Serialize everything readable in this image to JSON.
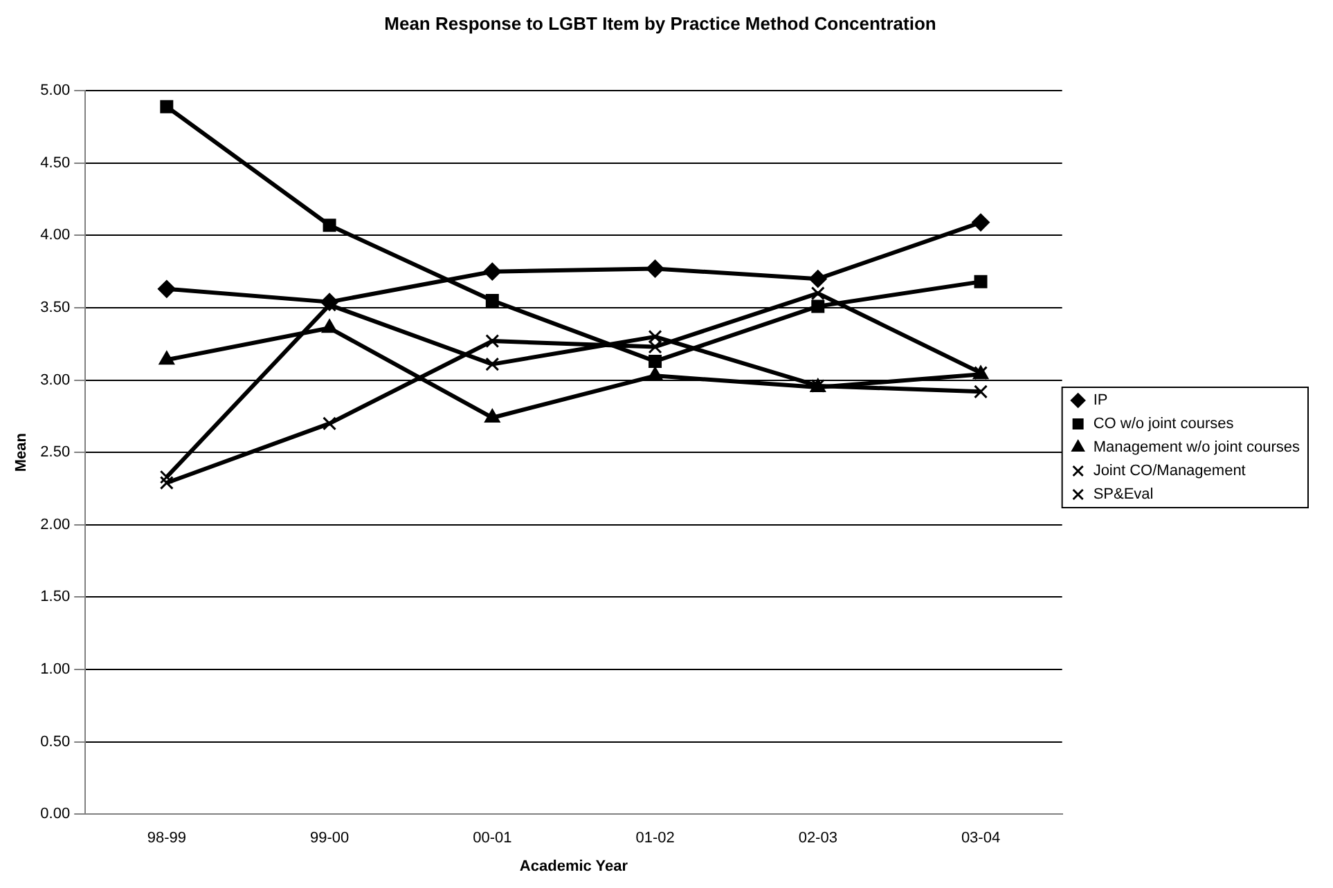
{
  "chart_data": {
    "type": "line",
    "title": "Mean Response to LGBT Item by Practice Method Concentration",
    "xlabel": "Academic Year",
    "ylabel": "Mean",
    "categories": [
      "98-99",
      "99-00",
      "00-01",
      "01-02",
      "02-03",
      "03-04"
    ],
    "series": [
      {
        "name": "IP",
        "color": "#000000",
        "marker": "diamond",
        "values": [
          3.63,
          3.54,
          3.75,
          3.77,
          3.7,
          4.09
        ]
      },
      {
        "name": "CO w/o joint courses",
        "color": "#000000",
        "marker": "square",
        "values": [
          4.89,
          4.07,
          3.55,
          3.13,
          3.51,
          3.68
        ]
      },
      {
        "name": "Management w/o joint courses",
        "color": "#000000",
        "marker": "triangle",
        "values": [
          3.14,
          3.36,
          2.74,
          3.03,
          2.95,
          3.04
        ]
      },
      {
        "name": "Joint CO/Management",
        "color": "#000000",
        "marker": "cross",
        "values": [
          2.33,
          3.52,
          3.11,
          3.3,
          2.96,
          2.92
        ]
      },
      {
        "name": "SP&Eval",
        "color": "#000000",
        "marker": "cross",
        "values": [
          2.29,
          2.7,
          3.27,
          3.23,
          3.6,
          3.05
        ]
      }
    ],
    "ylim": [
      0,
      5
    ],
    "yticks": [
      {
        "value": 0,
        "label": "0.00"
      },
      {
        "value": 0.5,
        "label": "0.50"
      },
      {
        "value": 1,
        "label": "1.00"
      },
      {
        "value": 1.5,
        "label": "1.50"
      },
      {
        "value": 2,
        "label": "2.00"
      },
      {
        "value": 2.5,
        "label": "2.50"
      },
      {
        "value": 3,
        "label": "3.00"
      },
      {
        "value": 3.5,
        "label": "3.50"
      },
      {
        "value": 4,
        "label": "4.00"
      },
      {
        "value": 4.5,
        "label": "4.50"
      },
      {
        "value": 5,
        "label": "5.00"
      }
    ],
    "grid": "y",
    "legend": "right",
    "line_style": "solid"
  }
}
